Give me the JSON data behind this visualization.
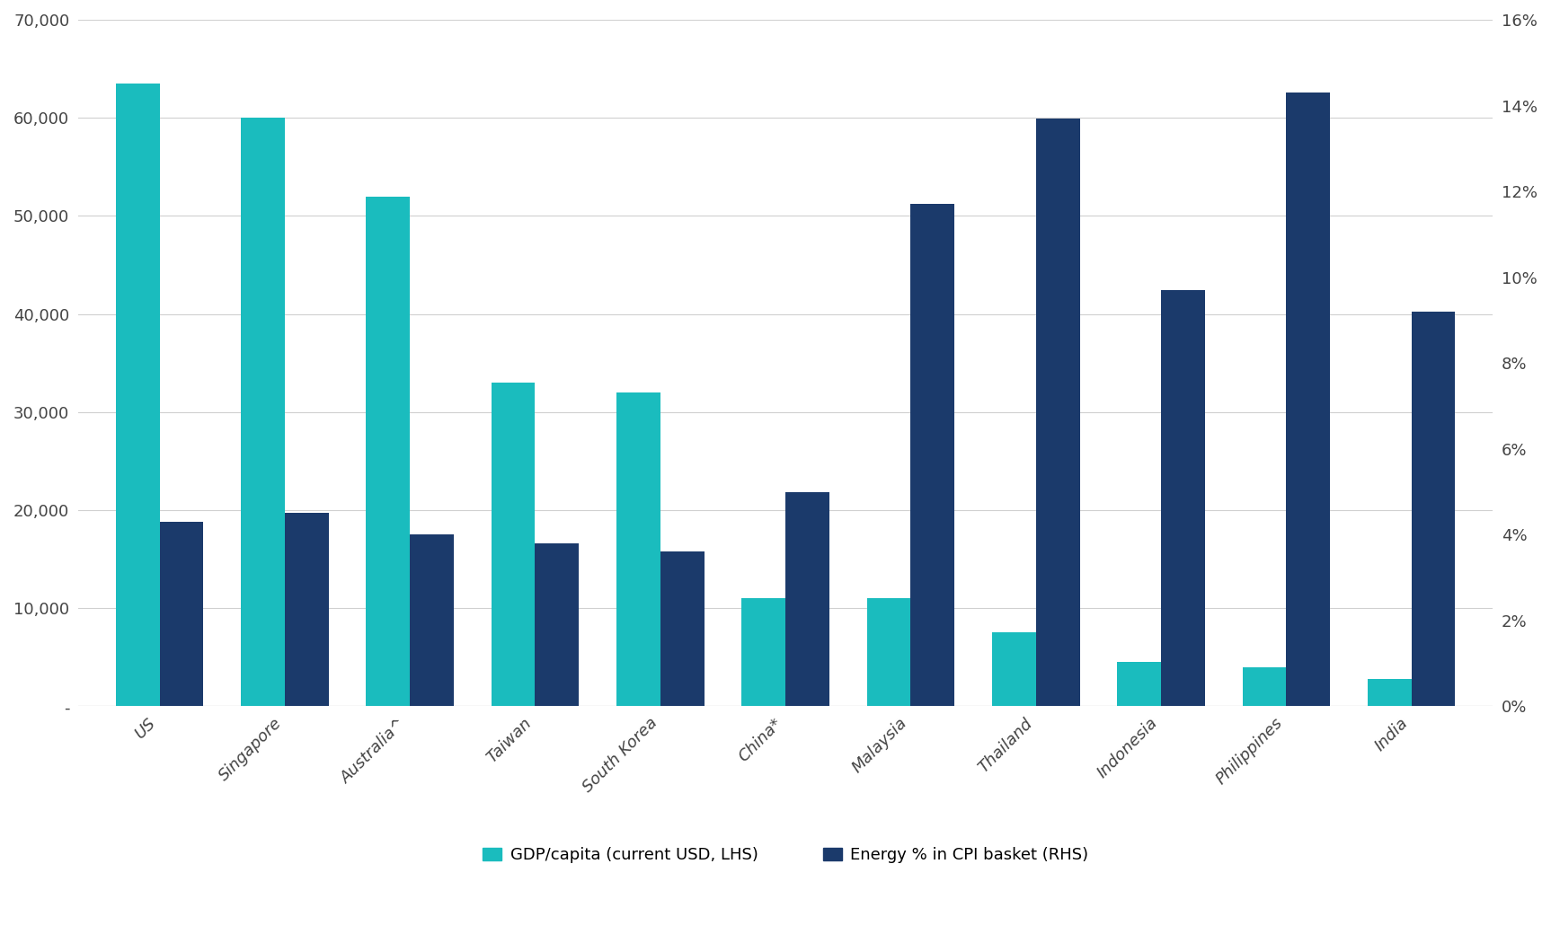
{
  "categories": [
    "US",
    "Singapore",
    "Australia^",
    "Taiwan",
    "South Korea",
    "China*",
    "Malaysia",
    "Thailand",
    "Indonesia",
    "Philippines",
    "India"
  ],
  "gdp_per_capita": [
    63500,
    60000,
    52000,
    33000,
    32000,
    11000,
    11000,
    7500,
    4500,
    4000,
    2800
  ],
  "energy_pct_cpi": [
    0.043,
    0.045,
    0.04,
    0.038,
    0.036,
    0.05,
    0.117,
    0.137,
    0.097,
    0.143,
    0.092
  ],
  "gdp_color": "#1ABCBE",
  "energy_color": "#1B3A6B",
  "lhs_ylim": [
    0,
    70000
  ],
  "rhs_ylim": [
    0,
    0.16
  ],
  "lhs_yticks": [
    0,
    10000,
    20000,
    30000,
    40000,
    50000,
    60000,
    70000
  ],
  "rhs_yticks": [
    0,
    0.02,
    0.04,
    0.06,
    0.08,
    0.1,
    0.12,
    0.14,
    0.16
  ],
  "legend_gdp": "GDP/capita (current USD, LHS)",
  "legend_energy": "Energy % in CPI basket (RHS)",
  "bar_width": 0.35,
  "background_color": "#ffffff",
  "tick_label_color": "#444444"
}
